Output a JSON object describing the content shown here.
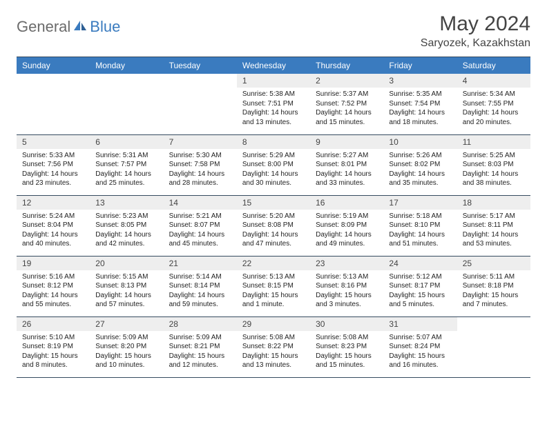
{
  "brand": {
    "text1": "General",
    "text2": "Blue",
    "text1_color": "#6b6b6b",
    "text2_color": "#3a7bbf"
  },
  "title": "May 2024",
  "location": "Saryozek, Kazakhstan",
  "headers": [
    "Sunday",
    "Monday",
    "Tuesday",
    "Wednesday",
    "Thursday",
    "Friday",
    "Saturday"
  ],
  "header_bg": "#3a7bbf",
  "header_fg": "#ffffff",
  "daynum_bg": "#eeeeee",
  "border_color": "#34495e",
  "weeks": [
    [
      {
        "empty": true
      },
      {
        "empty": true
      },
      {
        "empty": true
      },
      {
        "day": "1",
        "sunrise": "5:38 AM",
        "sunset": "7:51 PM",
        "daylight": "14 hours and 13 minutes."
      },
      {
        "day": "2",
        "sunrise": "5:37 AM",
        "sunset": "7:52 PM",
        "daylight": "14 hours and 15 minutes."
      },
      {
        "day": "3",
        "sunrise": "5:35 AM",
        "sunset": "7:54 PM",
        "daylight": "14 hours and 18 minutes."
      },
      {
        "day": "4",
        "sunrise": "5:34 AM",
        "sunset": "7:55 PM",
        "daylight": "14 hours and 20 minutes."
      }
    ],
    [
      {
        "day": "5",
        "sunrise": "5:33 AM",
        "sunset": "7:56 PM",
        "daylight": "14 hours and 23 minutes."
      },
      {
        "day": "6",
        "sunrise": "5:31 AM",
        "sunset": "7:57 PM",
        "daylight": "14 hours and 25 minutes."
      },
      {
        "day": "7",
        "sunrise": "5:30 AM",
        "sunset": "7:58 PM",
        "daylight": "14 hours and 28 minutes."
      },
      {
        "day": "8",
        "sunrise": "5:29 AM",
        "sunset": "8:00 PM",
        "daylight": "14 hours and 30 minutes."
      },
      {
        "day": "9",
        "sunrise": "5:27 AM",
        "sunset": "8:01 PM",
        "daylight": "14 hours and 33 minutes."
      },
      {
        "day": "10",
        "sunrise": "5:26 AM",
        "sunset": "8:02 PM",
        "daylight": "14 hours and 35 minutes."
      },
      {
        "day": "11",
        "sunrise": "5:25 AM",
        "sunset": "8:03 PM",
        "daylight": "14 hours and 38 minutes."
      }
    ],
    [
      {
        "day": "12",
        "sunrise": "5:24 AM",
        "sunset": "8:04 PM",
        "daylight": "14 hours and 40 minutes."
      },
      {
        "day": "13",
        "sunrise": "5:23 AM",
        "sunset": "8:05 PM",
        "daylight": "14 hours and 42 minutes."
      },
      {
        "day": "14",
        "sunrise": "5:21 AM",
        "sunset": "8:07 PM",
        "daylight": "14 hours and 45 minutes."
      },
      {
        "day": "15",
        "sunrise": "5:20 AM",
        "sunset": "8:08 PM",
        "daylight": "14 hours and 47 minutes."
      },
      {
        "day": "16",
        "sunrise": "5:19 AM",
        "sunset": "8:09 PM",
        "daylight": "14 hours and 49 minutes."
      },
      {
        "day": "17",
        "sunrise": "5:18 AM",
        "sunset": "8:10 PM",
        "daylight": "14 hours and 51 minutes."
      },
      {
        "day": "18",
        "sunrise": "5:17 AM",
        "sunset": "8:11 PM",
        "daylight": "14 hours and 53 minutes."
      }
    ],
    [
      {
        "day": "19",
        "sunrise": "5:16 AM",
        "sunset": "8:12 PM",
        "daylight": "14 hours and 55 minutes."
      },
      {
        "day": "20",
        "sunrise": "5:15 AM",
        "sunset": "8:13 PM",
        "daylight": "14 hours and 57 minutes."
      },
      {
        "day": "21",
        "sunrise": "5:14 AM",
        "sunset": "8:14 PM",
        "daylight": "14 hours and 59 minutes."
      },
      {
        "day": "22",
        "sunrise": "5:13 AM",
        "sunset": "8:15 PM",
        "daylight": "15 hours and 1 minute."
      },
      {
        "day": "23",
        "sunrise": "5:13 AM",
        "sunset": "8:16 PM",
        "daylight": "15 hours and 3 minutes."
      },
      {
        "day": "24",
        "sunrise": "5:12 AM",
        "sunset": "8:17 PM",
        "daylight": "15 hours and 5 minutes."
      },
      {
        "day": "25",
        "sunrise": "5:11 AM",
        "sunset": "8:18 PM",
        "daylight": "15 hours and 7 minutes."
      }
    ],
    [
      {
        "day": "26",
        "sunrise": "5:10 AM",
        "sunset": "8:19 PM",
        "daylight": "15 hours and 8 minutes."
      },
      {
        "day": "27",
        "sunrise": "5:09 AM",
        "sunset": "8:20 PM",
        "daylight": "15 hours and 10 minutes."
      },
      {
        "day": "28",
        "sunrise": "5:09 AM",
        "sunset": "8:21 PM",
        "daylight": "15 hours and 12 minutes."
      },
      {
        "day": "29",
        "sunrise": "5:08 AM",
        "sunset": "8:22 PM",
        "daylight": "15 hours and 13 minutes."
      },
      {
        "day": "30",
        "sunrise": "5:08 AM",
        "sunset": "8:23 PM",
        "daylight": "15 hours and 15 minutes."
      },
      {
        "day": "31",
        "sunrise": "5:07 AM",
        "sunset": "8:24 PM",
        "daylight": "15 hours and 16 minutes."
      },
      {
        "empty": true
      }
    ]
  ]
}
